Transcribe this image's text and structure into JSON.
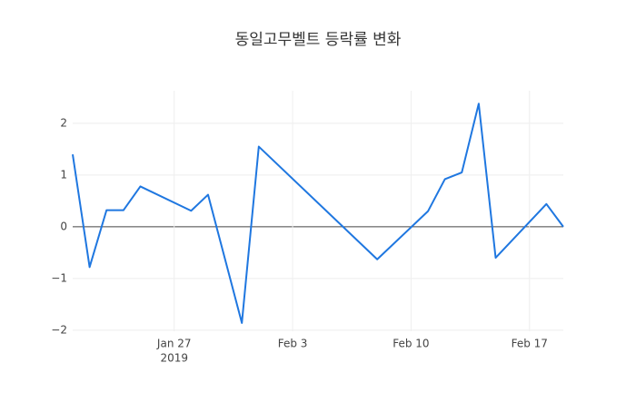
{
  "chart_data": {
    "type": "line",
    "title": "동일고무벨트 등락률 변화",
    "x": [
      "2019-01-21",
      "2019-01-22",
      "2019-01-23",
      "2019-01-24",
      "2019-01-25",
      "2019-01-28",
      "2019-01-29",
      "2019-01-31",
      "2019-02-01",
      "2019-02-08",
      "2019-02-11",
      "2019-02-12",
      "2019-02-13",
      "2019-02-14",
      "2019-02-15",
      "2019-02-18",
      "2019-02-19"
    ],
    "series": [
      {
        "color": "#1f77e0",
        "values": [
          1.4,
          -0.78,
          0.32,
          0.32,
          0.78,
          0.31,
          0.62,
          -1.86,
          1.55,
          -0.63,
          0.3,
          0.92,
          1.05,
          2.38,
          -0.6,
          0.44,
          0.0
        ]
      }
    ],
    "xlim": [
      "2019-01-21",
      "2019-02-19"
    ],
    "xticks": [
      {
        "value": "2019-01-27",
        "label": "Jan 27"
      },
      {
        "value": "2019-02-03",
        "label": "Feb 3"
      },
      {
        "value": "2019-02-10",
        "label": "Feb 10"
      },
      {
        "value": "2019-02-17",
        "label": "Feb 17"
      }
    ],
    "xtick_year": "2019",
    "ylim": [
      -2.02,
      2.63
    ],
    "yticks": [
      {
        "value": -2,
        "label": "−2"
      },
      {
        "value": -1,
        "label": "−1"
      },
      0,
      1,
      2
    ],
    "grid": true
  }
}
